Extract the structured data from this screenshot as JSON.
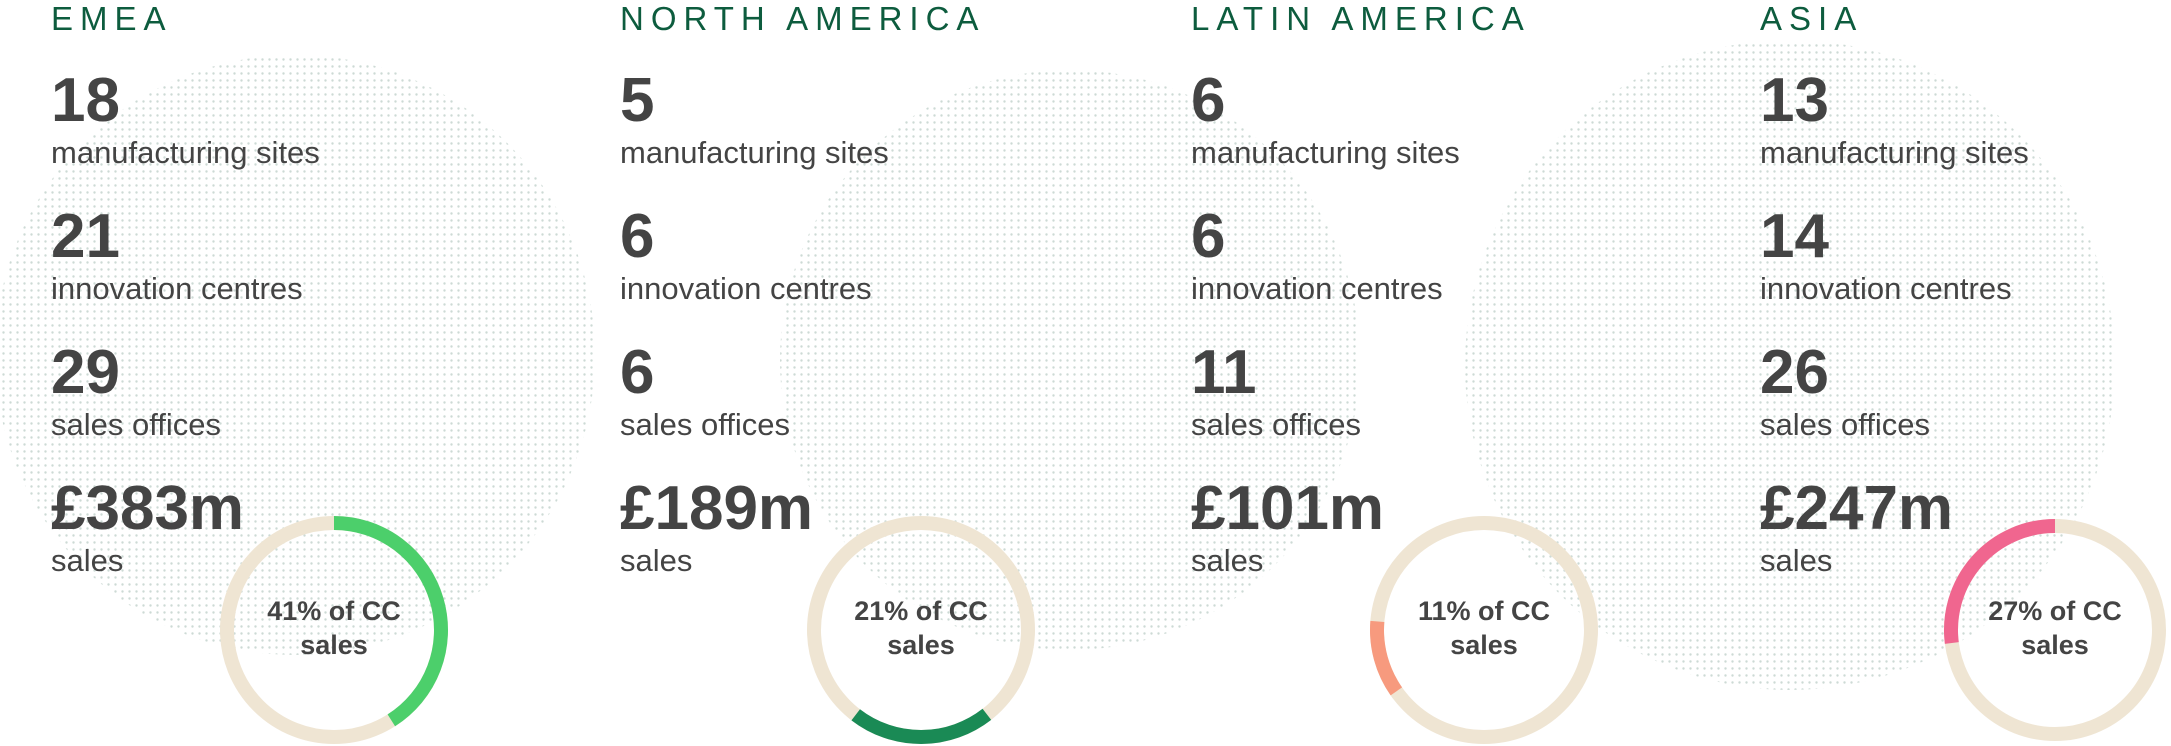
{
  "regions": [
    {
      "name": "EMEA",
      "stats": [
        {
          "value": 18,
          "label": "manufacturing sites"
        },
        {
          "value": 21,
          "label": "innovation centres"
        },
        {
          "value": 29,
          "label": "sales offices"
        },
        {
          "value": "£383m",
          "label": "sales"
        }
      ],
      "share": 41,
      "share_label": "41% of CC sales",
      "color": "#4ccf6b"
    },
    {
      "name": "NORTH AMERICA",
      "stats": [
        {
          "value": 5,
          "label": "manufacturing sites"
        },
        {
          "value": 6,
          "label": "innovation centres"
        },
        {
          "value": 6,
          "label": "sales offices"
        },
        {
          "value": "£189m",
          "label": "sales"
        }
      ],
      "share": 21,
      "share_label": "21% of CC sales",
      "color": "#1a8a55"
    },
    {
      "name": "LATIN AMERICA",
      "stats": [
        {
          "value": 6,
          "label": "manufacturing sites"
        },
        {
          "value": 6,
          "label": "innovation centres"
        },
        {
          "value": 11,
          "label": "sales offices"
        },
        {
          "value": "£101m",
          "label": "sales"
        }
      ],
      "share": 11,
      "share_label": "11% of CC sales",
      "color": "#f79a7e"
    },
    {
      "name": "ASIA",
      "stats": [
        {
          "value": 13,
          "label": "manufacturing sites"
        },
        {
          "value": 14,
          "label": "innovation centres"
        },
        {
          "value": 26,
          "label": "sales offices"
        },
        {
          "value": "£247m",
          "label": "sales"
        }
      ],
      "share": 27,
      "share_label": "27% of CC sales",
      "color": "#f0668f"
    }
  ]
}
